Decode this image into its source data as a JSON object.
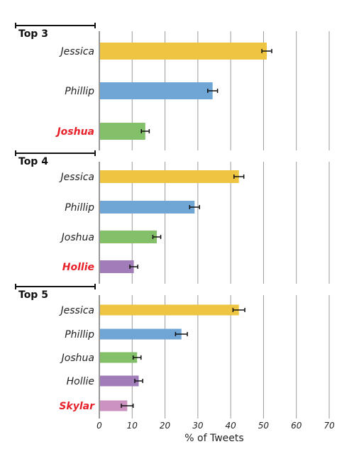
{
  "chart_data": [
    {
      "type": "bar",
      "orientation": "horizontal",
      "title": "Top 3",
      "categories": [
        "Jessica",
        "Phillip",
        "Joshua"
      ],
      "values": [
        51,
        34.5,
        14
      ],
      "errors": [
        1.5,
        1.5,
        1.2
      ],
      "colors": [
        "#EDC542",
        "#6FA6D6",
        "#84BF69"
      ],
      "label_colors": [
        "#222222",
        "#222222",
        "#E8202A"
      ],
      "xlim": [
        0,
        70
      ],
      "grid": true
    },
    {
      "type": "bar",
      "orientation": "horizontal",
      "title": "Top 4",
      "categories": [
        "Jessica",
        "Phillip",
        "Joshua",
        "Hollie"
      ],
      "values": [
        42.5,
        29,
        17.5,
        10.5
      ],
      "errors": [
        1.5,
        1.5,
        1.2,
        1.2
      ],
      "colors": [
        "#EDC542",
        "#6FA6D6",
        "#84BF69",
        "#A07DB9"
      ],
      "label_colors": [
        "#222222",
        "#222222",
        "#222222",
        "#E8202A"
      ],
      "xlim": [
        0,
        70
      ],
      "grid": true
    },
    {
      "type": "bar",
      "orientation": "horizontal",
      "title": "Top 5",
      "categories": [
        "Jessica",
        "Phillip",
        "Joshua",
        "Hollie",
        "Skylar"
      ],
      "values": [
        42.5,
        25,
        11.5,
        12,
        8.5
      ],
      "errors": [
        1.8,
        1.8,
        1.2,
        1.2,
        1.8
      ],
      "colors": [
        "#EDC542",
        "#6FA6D6",
        "#84BF69",
        "#A07DB9",
        "#CC92C2"
      ],
      "label_colors": [
        "#222222",
        "#222222",
        "#222222",
        "#222222",
        "#E8202A"
      ],
      "xlim": [
        0,
        70
      ],
      "grid": true
    }
  ],
  "x_axis": {
    "ticks": [
      "0",
      "10",
      "20",
      "30",
      "40",
      "50",
      "60",
      "70"
    ],
    "label": "% of Tweets"
  }
}
